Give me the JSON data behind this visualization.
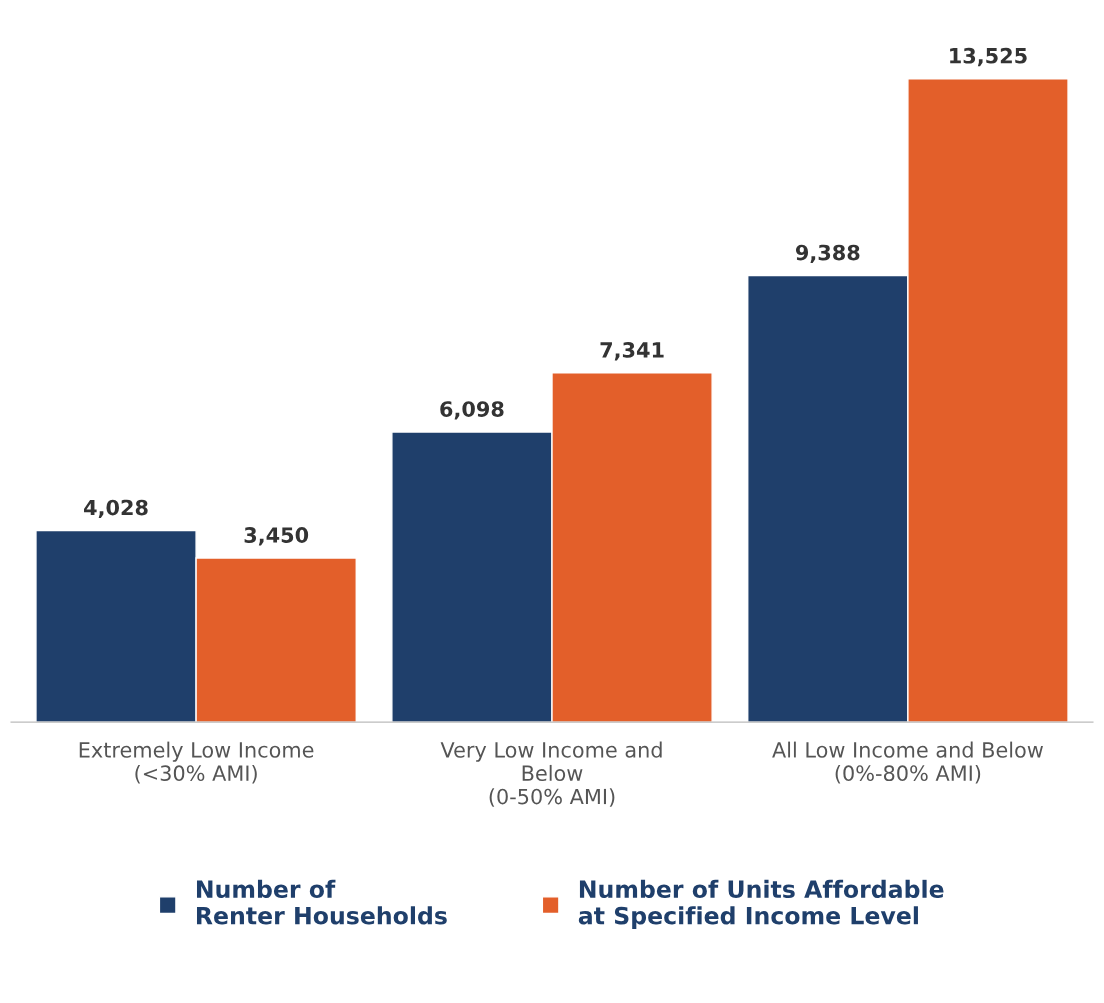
{
  "chart_data": {
    "type": "bar",
    "categories": [
      "Extremely Low Income\n(<30% AMI)",
      "Very Low Income and\nBelow\n(0-50% AMI)",
      "All Low Income and Below\n(0%-80% AMI)"
    ],
    "series": [
      {
        "name": "Number of\nRenter Households",
        "color": "#1f3f6b",
        "values": [
          4028,
          6098,
          9388
        ],
        "value_labels": [
          "4,028",
          "6,098",
          "9,388"
        ]
      },
      {
        "name": "Number of Units Affordable\nat Specified Income Level",
        "color": "#e35f2a",
        "values": [
          3450,
          7341,
          13525
        ],
        "value_labels": [
          "3,450",
          "7,341",
          "13,525"
        ]
      }
    ],
    "legend": "bottom"
  }
}
